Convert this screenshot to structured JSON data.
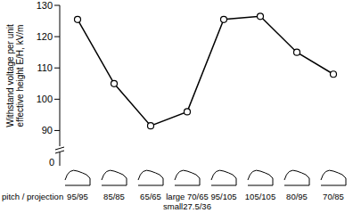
{
  "chart_data": {
    "type": "line",
    "y_label": "Withstand voltage per unit effective height E/H, kV/m",
    "x_label": "pitch / projection",
    "categories": [
      "95/95",
      "85/85",
      "65/65",
      "large 70/65\nsmall27.5/36",
      "95/105",
      "105/105",
      "80/95",
      "70/85"
    ],
    "values": [
      125.5,
      105,
      91.5,
      96,
      125.5,
      126.5,
      115,
      108
    ],
    "color": "#000000",
    "marker": "circle",
    "ylim": [
      85,
      130
    ],
    "yticks": [
      90,
      100,
      110,
      120,
      130
    ],
    "grid": false,
    "annotations": [
      "0"
    ]
  }
}
